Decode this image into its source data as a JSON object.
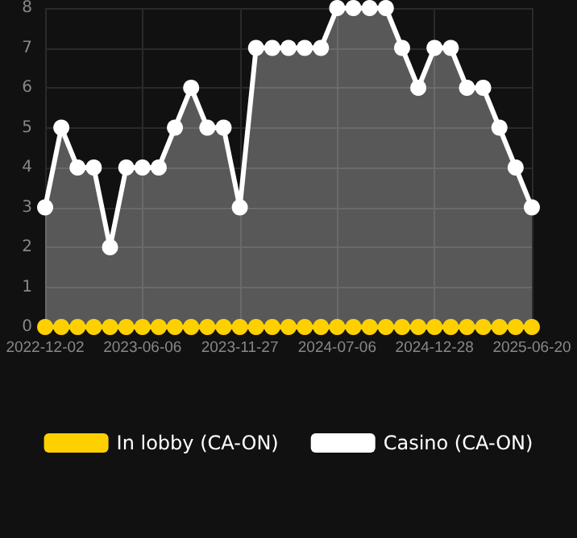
{
  "chart_data": {
    "type": "line",
    "categories": [
      "2022-12-02",
      null,
      null,
      null,
      null,
      null,
      "2023-06-06",
      null,
      null,
      null,
      null,
      null,
      "2023-11-27",
      null,
      null,
      null,
      null,
      null,
      "2024-07-06",
      null,
      null,
      null,
      null,
      null,
      "2024-12-28",
      null,
      null,
      null,
      null,
      null,
      "2025-06-20"
    ],
    "series": [
      {
        "name": "In lobby (CA-ON)",
        "color": "#ffd000",
        "values": [
          0,
          0,
          0,
          0,
          0,
          0,
          0,
          0,
          0,
          0,
          0,
          0,
          0,
          0,
          0,
          0,
          0,
          0,
          0,
          0,
          0,
          0,
          0,
          0,
          0,
          0,
          0,
          0,
          0,
          0,
          0
        ]
      },
      {
        "name": "Casino (CA-ON)",
        "type": "area",
        "color": "#ffffff",
        "values": [
          3,
          5,
          4,
          4,
          2,
          4,
          4,
          4,
          5,
          6,
          5,
          5,
          3,
          7,
          7,
          7,
          7,
          7,
          8,
          8,
          8,
          8,
          7,
          6,
          7,
          7,
          6,
          6,
          5,
          4,
          3
        ]
      }
    ],
    "ylim": [
      0,
      8
    ],
    "yticks": [
      0,
      1,
      2,
      3,
      4,
      5,
      6,
      7,
      8
    ],
    "grid": true,
    "legend": "bottom",
    "marker": "circle"
  }
}
